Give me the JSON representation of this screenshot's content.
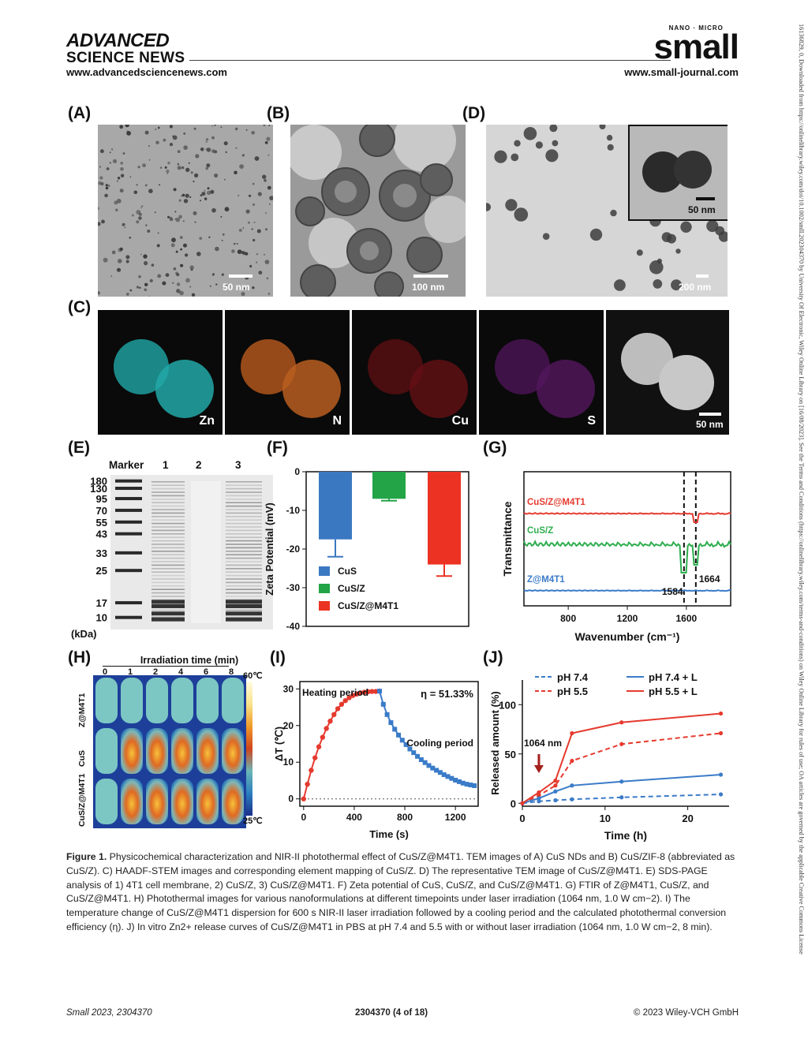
{
  "header": {
    "publisher_line1": "ADVANCED",
    "publisher_line2": "SCIENCE NEWS",
    "url_left": "www.advancedsciencenews.com",
    "journal_tag": "NANO · MICRO",
    "journal_name": "small",
    "url_right": "www.small-journal.com"
  },
  "side_note": "16136829, 0, Downloaded from https://onlinelibrary.wiley.com/doi/10.1002/smll.202304370 by University Of Electronic, Wiley Online Library on [16/08/2023]. See the Terms and Conditions (https://onlinelibrary.wiley.com/terms-and-conditions) on Wiley Online Library for rules of use; OA articles are governed by the applicable Creative Commons License",
  "panels": {
    "A": {
      "label": "(A)",
      "scale": "50 nm"
    },
    "B": {
      "label": "(B)",
      "scale": "100 nm"
    },
    "C": {
      "label": "(C)",
      "maps": [
        "Zn",
        "N",
        "Cu",
        "S"
      ],
      "scale": "50 nm"
    },
    "D": {
      "label": "(D)",
      "scale": "200 nm",
      "inset_scale": "50 nm"
    },
    "E": {
      "label": "(E)",
      "header": [
        "Marker",
        "1",
        "2",
        "3"
      ],
      "unit": "(kDa)",
      "markers": [
        "180",
        "130",
        "95",
        "70",
        "55",
        "43",
        "33",
        "25",
        "17",
        "10"
      ]
    },
    "F": {
      "label": "(F)"
    },
    "G": {
      "label": "(G)"
    },
    "H": {
      "label": "(H)",
      "title": "Irradiation time (min)",
      "times": [
        "0",
        "1",
        "2",
        "4",
        "6",
        "8"
      ],
      "rows": [
        "Z@M4T1",
        "CuS",
        "CuS/Z@M4T1"
      ],
      "scale_max": "60℃",
      "scale_min": "25℃"
    },
    "I": {
      "label": "(I)"
    },
    "J": {
      "label": "(J)"
    }
  },
  "chart_data": [
    {
      "id": "F",
      "type": "bar",
      "ylabel": "Zeta Potential (mV)",
      "ylim": [
        -40,
        0
      ],
      "yticks": [
        "0",
        "-10",
        "-20",
        "-30",
        "-40"
      ],
      "categories": [
        "CuS",
        "CuS/Z",
        "CuS/Z@M4T1"
      ],
      "legend": [
        "CuS",
        "CuS/Z",
        "CuS/Z@M4T1"
      ],
      "values": [
        -17.5,
        -7.0,
        -24.0
      ],
      "errors": [
        4.5,
        0.5,
        3.0
      ],
      "colors": [
        "#3b78c2",
        "#22a447",
        "#ec3323"
      ],
      "legend_position": "bottom-left"
    },
    {
      "id": "G",
      "type": "line",
      "xlabel": "Wavenumber (cm⁻¹)",
      "ylabel": "Transmittance",
      "xlim": [
        500,
        1900
      ],
      "xticks": [
        "800",
        "1200",
        "1600"
      ],
      "series": [
        {
          "name": "CuS/Z@M4T1",
          "color": "#e53a2e"
        },
        {
          "name": "CuS/Z",
          "color": "#2fae4f"
        },
        {
          "name": "Z@M4T1",
          "color": "#3a7bc8"
        }
      ],
      "annotations": [
        "1584",
        "1664"
      ]
    },
    {
      "id": "I",
      "type": "line",
      "xlabel": "Time (s)",
      "ylabel": "ΔT (℃)",
      "xlim": [
        -30,
        1380
      ],
      "ylim": [
        -2,
        32
      ],
      "xticks": [
        "0",
        "400",
        "800",
        "1200"
      ],
      "yticks": [
        "0",
        "10",
        "20",
        "30"
      ],
      "annotations": [
        "Heating period",
        "Cooling period",
        "η = 51.33%"
      ],
      "heating": {
        "color": "#e53a2e",
        "x": [
          0,
          30,
          60,
          90,
          120,
          150,
          180,
          210,
          240,
          270,
          300,
          330,
          360,
          390,
          420,
          450,
          480,
          510,
          540,
          570,
          600
        ],
        "y": [
          0,
          4,
          7.8,
          11.2,
          14.2,
          16.8,
          19.2,
          21.2,
          23,
          24.6,
          25.8,
          26.8,
          27.6,
          28.2,
          28.6,
          28.9,
          29.1,
          29.2,
          29.3,
          29.3,
          29.4
        ]
      },
      "cooling": {
        "color": "#3a7bc8",
        "x": [
          600,
          630,
          660,
          690,
          720,
          750,
          780,
          810,
          840,
          870,
          900,
          930,
          960,
          990,
          1020,
          1050,
          1080,
          1110,
          1140,
          1170,
          1200,
          1230,
          1260,
          1290,
          1320,
          1350
        ],
        "y": [
          29.4,
          25.8,
          23,
          20.8,
          19,
          17.4,
          16,
          14.8,
          13.6,
          12.6,
          11.6,
          10.7,
          9.9,
          9.1,
          8.4,
          7.8,
          7.2,
          6.6,
          6.1,
          5.6,
          5.1,
          4.7,
          4.3,
          4,
          3.8,
          3.6
        ]
      }
    },
    {
      "id": "J",
      "type": "line",
      "xlabel": "Time (h)",
      "ylabel": "Released amount (%)",
      "xlim": [
        0,
        25
      ],
      "ylim": [
        -3,
        125
      ],
      "xticks": [
        "0",
        "10",
        "20"
      ],
      "yticks": [
        "0",
        "50",
        "100"
      ],
      "annotation": "1064 nm",
      "series": [
        {
          "name": "pH 7.4",
          "color": "#3a7bc8",
          "dash": true,
          "x": [
            0,
            2,
            4,
            6,
            12,
            24
          ],
          "y": [
            0,
            2,
            3,
            4,
            6,
            9
          ]
        },
        {
          "name": "pH 5.5",
          "color": "#e53a2e",
          "dash": true,
          "x": [
            0,
            2,
            4,
            6,
            12,
            24
          ],
          "y": [
            0,
            8,
            18,
            43,
            60,
            71
          ]
        },
        {
          "name": "pH 7.4 + L",
          "color": "#3a7bc8",
          "dash": false,
          "x": [
            0,
            2,
            4,
            6,
            12,
            24
          ],
          "y": [
            0,
            5,
            12,
            18,
            22,
            29
          ]
        },
        {
          "name": "pH 5.5 + L",
          "color": "#e53a2e",
          "dash": false,
          "x": [
            0,
            2,
            4,
            6,
            12,
            24
          ],
          "y": [
            0,
            11,
            23,
            71,
            82,
            91
          ]
        }
      ]
    }
  ],
  "caption": {
    "label": "Figure 1.",
    "text": "Physicochemical characterization and NIR-II photothermal effect of CuS/Z@M4T1. TEM images of A) CuS NDs and B) CuS/ZIF-8 (abbreviated as CuS/Z). C) HAADF-STEM images and corresponding element mapping of CuS/Z. D) The representative TEM image of CuS/Z@M4T1. E) SDS-PAGE analysis of 1) 4T1 cell membrane, 2) CuS/Z, 3) CuS/Z@M4T1. F) Zeta potential of CuS, CuS/Z, and CuS/Z@M4T1. G) FTIR of Z@M4T1, CuS/Z, and CuS/Z@M4T1. H) Photothermal images for various nanoformulations at different timepoints under laser irradiation (1064 nm, 1.0 W cm−2). I) The temperature change of CuS/Z@M4T1 dispersion for 600 s NIR-II laser irradiation followed by a cooling period and the calculated photothermal conversion efficiency (η). J) In vitro Zn2+ release curves of CuS/Z@M4T1 in PBS at pH 7.4 and 5.5 with or without laser irradiation (1064 nm, 1.0 W cm−2, 8 min)."
  },
  "footer": {
    "left": "Small 2023, 2304370",
    "center": "2304370 (4 of 18)",
    "right": "© 2023 Wiley-VCH GmbH"
  }
}
